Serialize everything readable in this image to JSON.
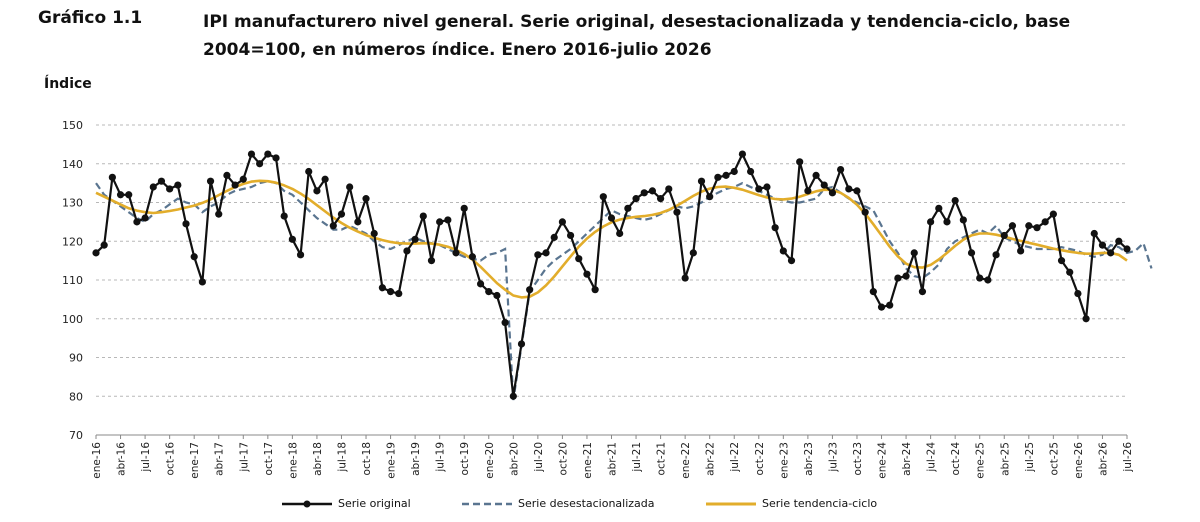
{
  "header": {
    "label": "Gráfico 1.1",
    "title": "IPI manufacturero nivel general. Serie original, desestacionalizada y tendencia-ciclo, base 2004=100, en números índice. Enero 2016-julio 2026"
  },
  "colors": {
    "original": "#111111",
    "desestacionalizada": "#5a7590",
    "tendencia": "#e2ad2b",
    "grid": "#b8b8b8"
  },
  "chart_data": {
    "type": "line",
    "ylabel": "Índice",
    "xlabel": "",
    "ylim": [
      70,
      150
    ],
    "yticks": [
      70,
      80,
      90,
      100,
      110,
      120,
      130,
      140,
      150
    ],
    "grid": true,
    "legend_position": "bottom",
    "x_tick_labels": [
      "ene-16",
      "abr-16",
      "jul-16",
      "oct-16",
      "ene-17",
      "abr-17",
      "jul-17",
      "oct-17",
      "ene-18",
      "abr-18",
      "jul-18",
      "oct-18",
      "ene-19",
      "abr-19",
      "jul-19",
      "oct-19",
      "ene-20",
      "abr-20",
      "jul-20",
      "oct-20",
      "ene-21",
      "abr-21",
      "jul-21",
      "oct-21",
      "ene-22",
      "abr-22",
      "jul-22",
      "oct-22",
      "ene-23",
      "abr-23",
      "jul-23",
      "oct-23",
      "ene-24",
      "abr-24",
      "jul-24",
      "oct-24",
      "ene-25",
      "abr-25",
      "jul-25",
      "oct-25",
      "ene-26",
      "abr-26",
      "jul-26"
    ],
    "n_periods": 127,
    "series": [
      {
        "name": "Serie original",
        "style": "line-markers",
        "values": [
          117,
          119,
          136.5,
          132,
          132,
          125,
          126,
          134,
          135.5,
          133.5,
          134.5,
          124.5,
          116,
          109.5,
          135.5,
          127,
          137,
          134.5,
          136,
          142.5,
          140,
          142.5,
          141.5,
          126.5,
          120.5,
          116.5,
          138,
          133,
          136,
          124,
          127,
          134,
          125,
          131,
          122,
          108,
          107,
          106.5,
          117.5,
          120.5,
          126.5,
          115,
          125,
          125.5,
          117,
          128.5,
          116,
          109,
          107,
          106,
          99,
          80,
          93.5,
          107.5,
          116.5,
          117,
          121,
          125,
          121.5,
          115.5,
          111.5,
          107.5,
          131.5,
          126,
          122,
          128.5,
          131,
          132.5,
          133,
          131,
          133.5,
          127.5,
          110.5,
          117,
          135.5,
          131.5,
          136.5,
          137,
          138,
          142.5,
          138,
          133.5,
          134,
          123.5,
          117.5,
          115,
          140.5,
          133,
          137,
          134.5,
          132.5,
          138.5,
          133.5,
          133,
          127.5,
          107,
          103,
          103.5,
          110.5,
          111,
          117,
          107,
          125,
          128.5,
          125,
          130.5,
          125.5,
          117,
          110.5,
          110,
          116.5,
          121.5,
          124,
          117.5,
          124,
          123.5,
          125,
          127,
          115,
          112,
          106.5,
          100,
          122,
          119,
          117,
          120,
          118
        ]
      },
      {
        "name": "Serie desestacionalizada",
        "style": "dashed",
        "values": [
          135,
          132,
          130.5,
          129,
          127.5,
          126,
          125,
          127,
          128,
          129.5,
          131,
          130,
          129.5,
          127.5,
          129,
          130,
          132,
          133,
          133.5,
          134,
          135,
          135.5,
          135,
          133,
          132,
          130,
          128,
          126,
          124.5,
          123,
          123,
          124,
          123,
          122,
          120,
          118.5,
          118,
          119,
          120,
          121,
          120,
          119.5,
          119,
          118,
          117,
          116,
          115.5,
          115,
          116.5,
          117,
          118,
          79,
          93,
          107,
          110,
          113,
          115,
          116.5,
          118,
          120,
          122,
          124,
          126,
          128,
          127,
          126.5,
          126,
          125.5,
          126,
          127,
          128,
          129,
          128.5,
          129,
          130,
          131.5,
          132.5,
          133.5,
          134,
          135,
          134,
          133,
          132,
          131,
          130.5,
          130,
          130,
          130.5,
          131,
          133.5,
          134,
          132.5,
          131,
          130,
          129,
          128,
          124,
          120,
          117,
          113,
          111,
          110.5,
          112,
          114,
          118,
          120,
          121,
          122,
          123,
          122,
          124,
          121,
          120,
          119,
          118.5,
          118,
          118,
          118,
          118.5,
          118,
          117.5,
          116.5,
          116,
          116.5,
          119,
          118.5,
          117,
          117.5,
          119.5,
          113
        ]
      },
      {
        "name": "Serie tendencia-ciclo",
        "style": "line",
        "values": [
          132.5,
          131.5,
          130.5,
          129.5,
          128.5,
          127.9,
          127.5,
          127.3,
          127.5,
          127.8,
          128.2,
          128.7,
          129.2,
          129.9,
          130.8,
          131.9,
          133,
          134,
          134.8,
          135.4,
          135.6,
          135.5,
          135.1,
          134.4,
          133.5,
          132.3,
          130.9,
          129.3,
          127.7,
          126.1,
          124.7,
          123.5,
          122.5,
          121.6,
          120.9,
          120.3,
          119.8,
          119.5,
          119.4,
          119.4,
          119.5,
          119.4,
          119.1,
          118.6,
          117.8,
          116.7,
          115.3,
          113.4,
          111.3,
          109.2,
          107.5,
          106,
          105.5,
          105.7,
          106.8,
          108.6,
          110.9,
          113.5,
          116.1,
          118.6,
          120.7,
          122.4,
          123.8,
          124.9,
          125.6,
          126,
          126.3,
          126.5,
          126.8,
          127.3,
          128.1,
          129.2,
          130.4,
          131.7,
          132.8,
          133.6,
          134,
          134.1,
          133.8,
          133.3,
          132.6,
          131.9,
          131.3,
          130.9,
          130.8,
          131,
          131.5,
          132.2,
          132.9,
          133.3,
          133.2,
          132.5,
          131.2,
          129.4,
          127.1,
          124.4,
          121.5,
          118.6,
          116.1,
          114.2,
          113.3,
          113.2,
          113.9,
          115.3,
          117,
          118.8,
          120.4,
          121.5,
          122,
          122,
          121.7,
          121.2,
          120.6,
          120.1,
          119.6,
          119.1,
          118.6,
          118.1,
          117.7,
          117.3,
          117,
          116.8,
          116.8,
          117,
          117,
          116.5,
          115
        ]
      }
    ]
  },
  "legend": [
    {
      "label": "Serie original"
    },
    {
      "label": "Serie desestacionalizada"
    },
    {
      "label": "Serie tendencia-ciclo"
    }
  ]
}
